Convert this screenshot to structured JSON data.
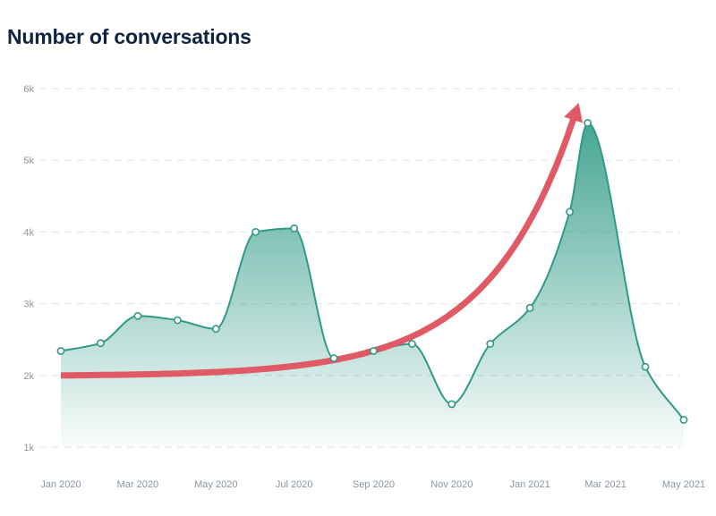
{
  "chart_data": {
    "type": "area",
    "title": "Number of conversations",
    "xlabel": "",
    "ylabel": "",
    "x_tick_labels": [
      "Jan 2020",
      "Mar 2020",
      "May 2020",
      "Jul 2020",
      "Sep 2020",
      "Nov 2020",
      "Jan 2021",
      "Mar 2021",
      "May 2021"
    ],
    "y_tick_labels": [
      "1k",
      "2k",
      "3k",
      "4k",
      "5k",
      "6k"
    ],
    "y_ticks": [
      1000,
      2000,
      3000,
      4000,
      5000,
      6000
    ],
    "ylim": [
      1000,
      6000
    ],
    "grid": true,
    "legend": "none",
    "colors": {
      "series": "#2f9a85",
      "area": "#5fae9f",
      "trend_arrow": "#e05a66"
    },
    "series": [
      {
        "x": [
          "2020-01-15",
          "2020-02-15",
          "2020-03-15",
          "2020-04-15",
          "2020-05-15",
          "2020-06-15",
          "2020-07-15",
          "2020-08-15",
          "2020-09-15",
          "2020-10-15",
          "2020-11-15",
          "2020-12-15",
          "2021-01-15",
          "2021-02-15",
          "2021-03-01",
          "2021-04-15",
          "2021-05-15"
        ],
        "values": [
          2340,
          2450,
          2830,
          2770,
          2650,
          4000,
          4050,
          2240,
          2340,
          2440,
          1600,
          2440,
          2940,
          4280,
          5520,
          2120,
          1380
        ]
      }
    ],
    "annotations": [
      {
        "type": "trend-arrow",
        "from": {
          "x": "2020-01-15",
          "y": 2000
        },
        "to": {
          "x": "2021-02-22",
          "y": 5800
        },
        "curve": "exponential"
      }
    ]
  }
}
